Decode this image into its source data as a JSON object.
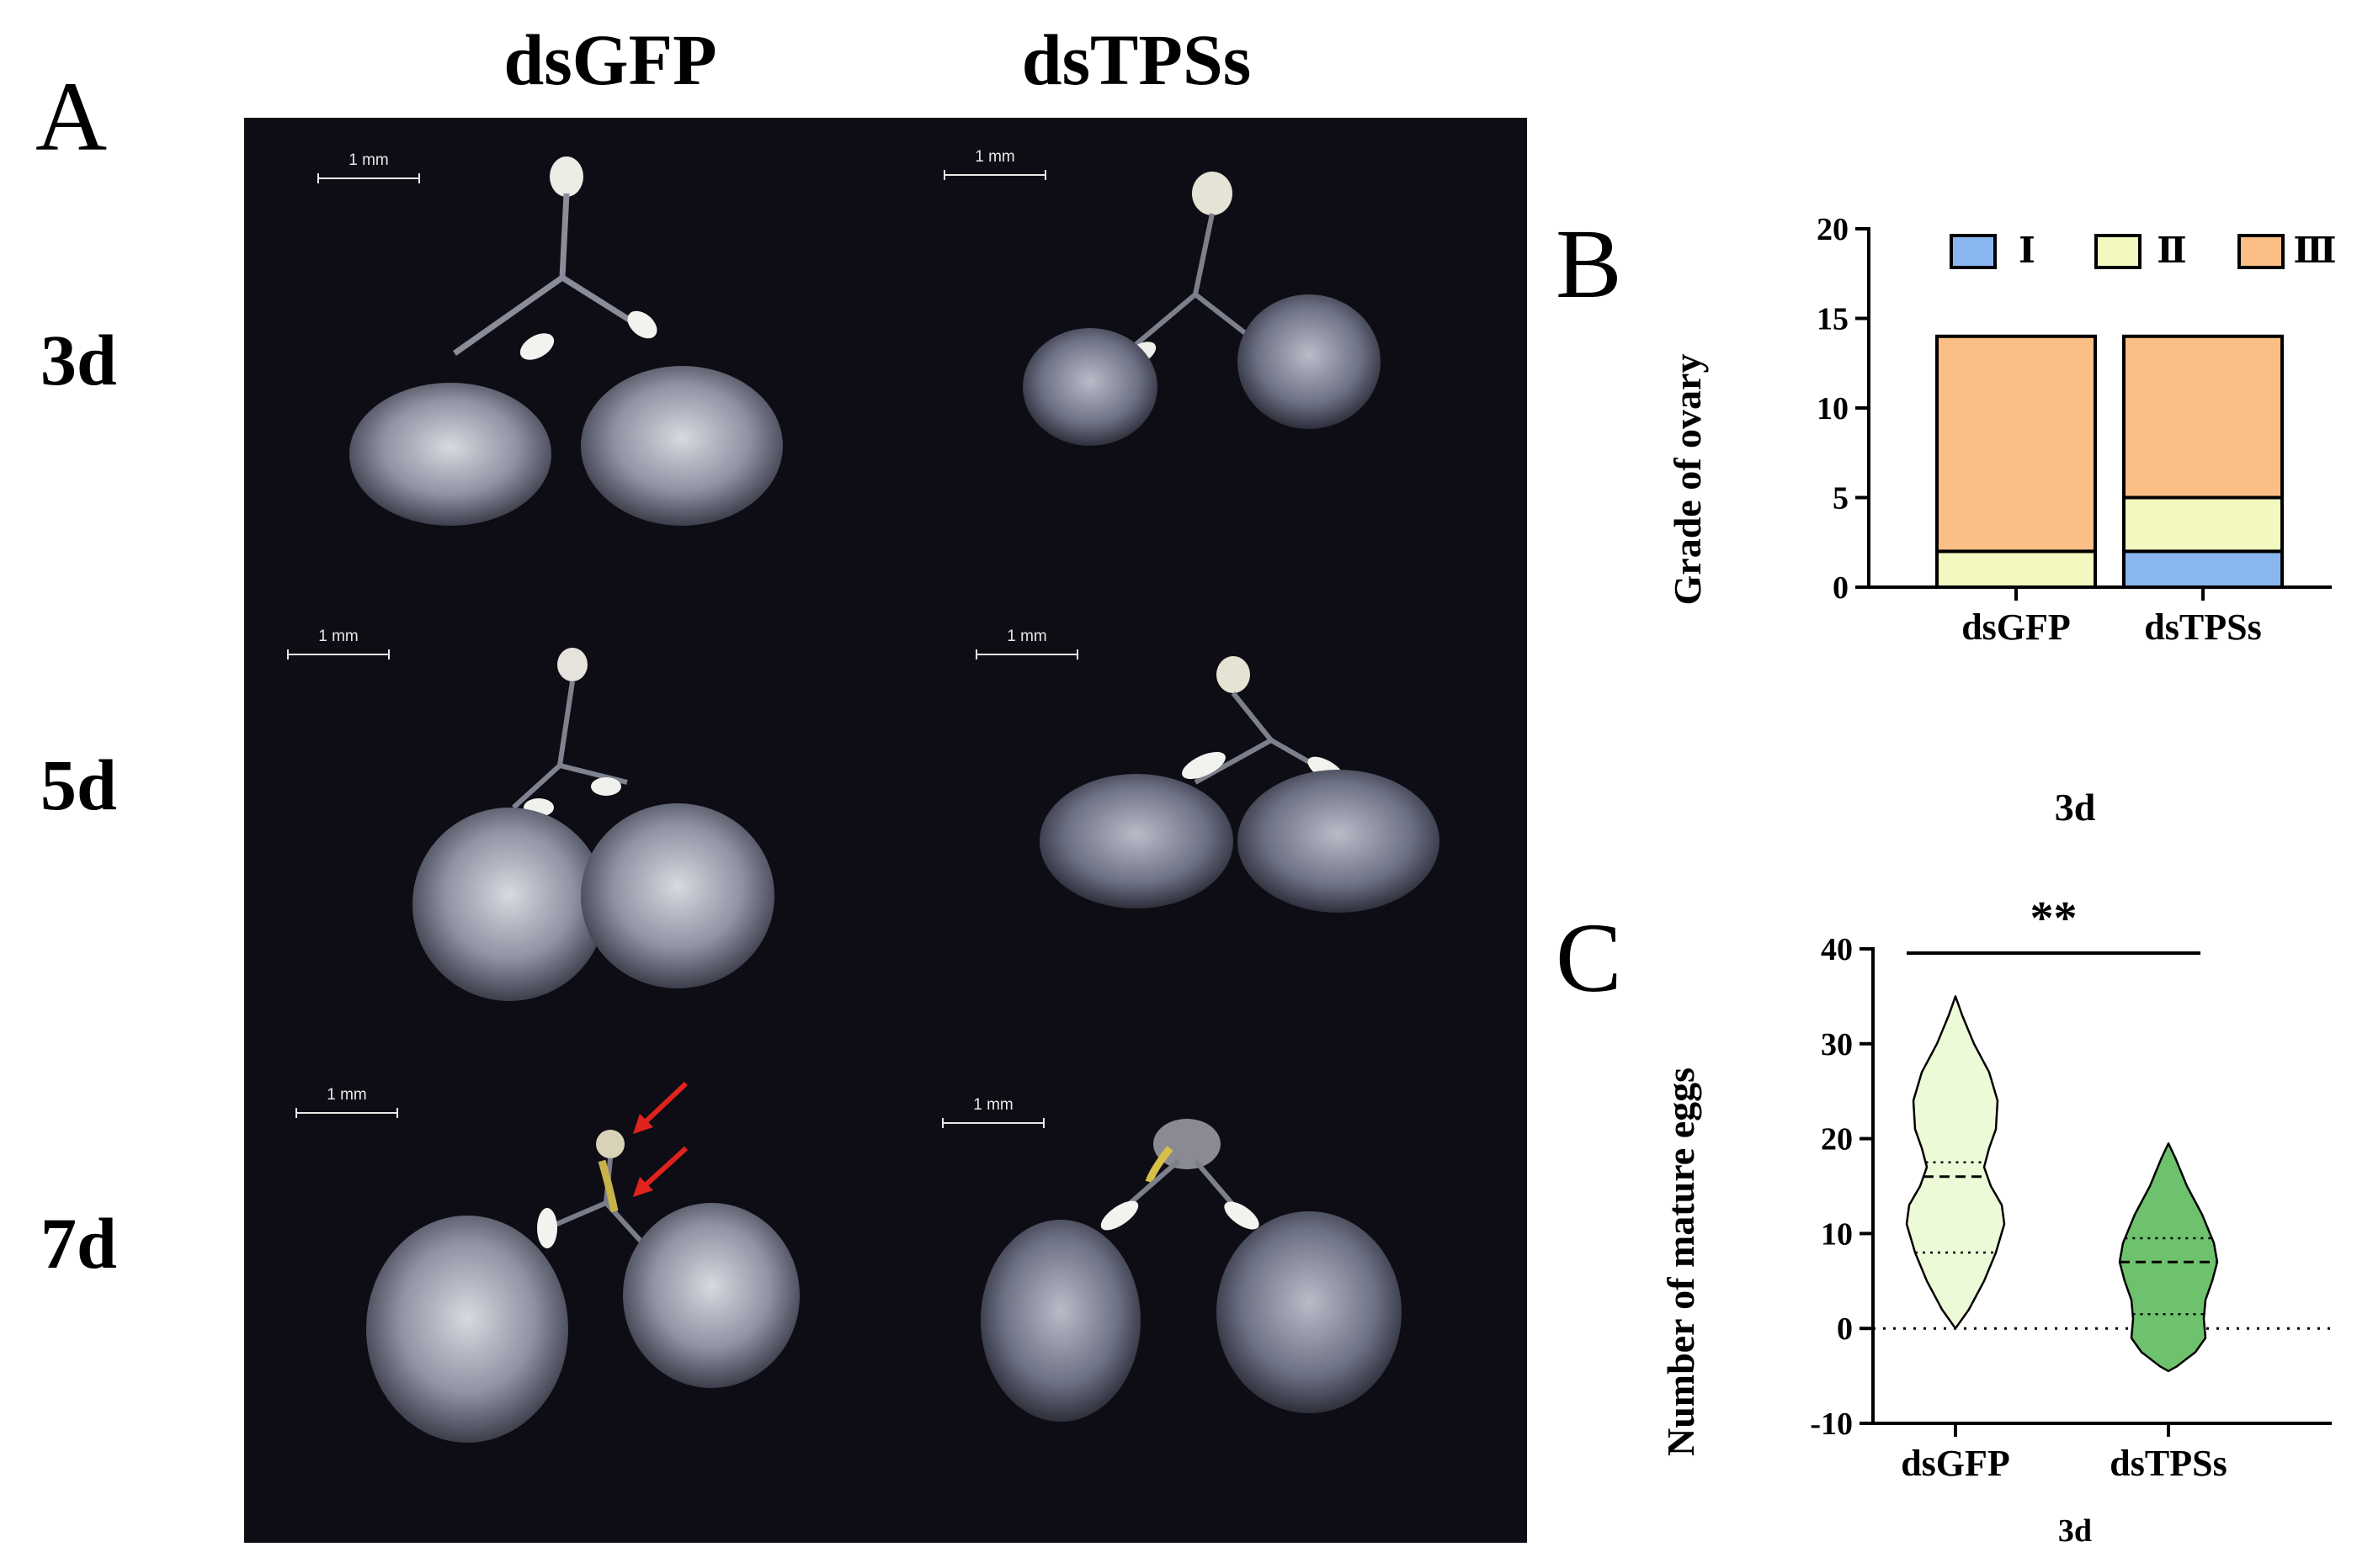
{
  "panelA": {
    "letter": "A",
    "columns": [
      "dsGFP",
      "dsTPSs"
    ],
    "rows": [
      "3d",
      "5d",
      "7d"
    ],
    "scale_bar_label": "1 mm"
  },
  "panelB": {
    "letter": "B"
  },
  "panelC": {
    "letter": "C"
  },
  "chart_data": [
    {
      "type": "bar",
      "stacked": true,
      "categories": [
        "dsGFP",
        "dsTPSs"
      ],
      "series": [
        {
          "name": "Ⅰ",
          "values": [
            0,
            2
          ],
          "color": "#8ab6f0"
        },
        {
          "name": "Ⅱ",
          "values": [
            2,
            3
          ],
          "color": "#f2f8c0"
        },
        {
          "name": "Ⅲ",
          "values": [
            12,
            9
          ],
          "color": "#fbbe84"
        }
      ],
      "ylabel": "Grade of ovary",
      "xlabel": "3d",
      "ylim": [
        0,
        20
      ],
      "yticks": [
        0,
        5,
        10,
        15,
        20
      ],
      "legend": "top-right",
      "grid": false
    },
    {
      "type": "violin",
      "categories": [
        "dsGFP",
        "dsTPSs"
      ],
      "series": [
        {
          "name": "dsGFP",
          "color": "#edfad8",
          "range": [
            0,
            35
          ],
          "median": 16,
          "quartiles": [
            8,
            17.5
          ]
        },
        {
          "name": "dsTPSs",
          "color": "#6ec26e",
          "range": [
            -4.5,
            19.5
          ],
          "median": 7,
          "quartiles": [
            1.5,
            9.5
          ]
        }
      ],
      "ylabel": "Number of mature eggs",
      "xlabel": "3d",
      "ylim": [
        -10,
        40
      ],
      "yticks": [
        -10,
        0,
        10,
        20,
        30,
        40
      ],
      "reference_line": 0,
      "significance": "**",
      "grid": false
    }
  ]
}
